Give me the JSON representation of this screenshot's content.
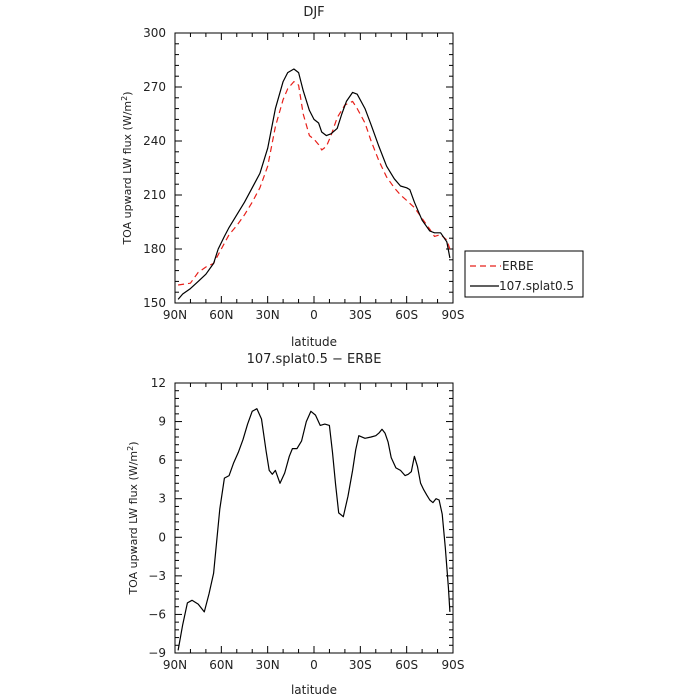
{
  "chart_data": [
    {
      "type": "line",
      "title": "DJF",
      "xlabel": "latitude",
      "ylabel": "TOA upward LW flux (W/m²)",
      "ylabel_main": "TOA upward LW flux (W/m",
      "ylabel_sup": "2",
      "ylabel_end": ")",
      "xlim": [
        90,
        -90
      ],
      "ylim": [
        150,
        300
      ],
      "x_ticks": [
        {
          "value": 90,
          "label": "90N"
        },
        {
          "value": 60,
          "label": "60N"
        },
        {
          "value": 30,
          "label": "30N"
        },
        {
          "value": 0,
          "label": "0"
        },
        {
          "value": -30,
          "label": "30S"
        },
        {
          "value": -60,
          "label": "60S"
        },
        {
          "value": -90,
          "label": "90S"
        }
      ],
      "y_ticks": [
        {
          "value": 150,
          "label": "150"
        },
        {
          "value": 180,
          "label": "180"
        },
        {
          "value": 210,
          "label": "210"
        },
        {
          "value": 240,
          "label": "240"
        },
        {
          "value": 270,
          "label": "270"
        },
        {
          "value": 300,
          "label": "300"
        }
      ],
      "legend_position": "outside-right",
      "series": [
        {
          "name": "ERBE",
          "color": "#e8201a",
          "dash": "dashed",
          "x": [
            88,
            80,
            75,
            70,
            65,
            60,
            55,
            50,
            45,
            40,
            35,
            30,
            25,
            20,
            17,
            13,
            10,
            7,
            3,
            0,
            -3,
            -5,
            -8,
            -11,
            -15,
            -20,
            -25,
            -28,
            -33,
            -37,
            -42,
            -47,
            -52,
            -56,
            -60,
            -65,
            -70,
            -75,
            -78,
            -82,
            -86,
            -88
          ],
          "y": [
            160,
            161,
            167,
            170,
            172,
            180,
            188,
            193,
            199,
            206,
            214,
            226,
            248,
            263,
            269,
            273,
            271,
            255,
            243,
            241,
            238,
            235,
            237,
            243,
            253,
            260,
            262,
            258,
            250,
            240,
            229,
            220,
            214,
            210,
            207,
            203,
            197,
            191,
            187,
            188,
            185,
            180
          ]
        },
        {
          "name": "107.splat0.5",
          "color": "#000000",
          "dash": "solid",
          "x": [
            88,
            85,
            80,
            75,
            70,
            65,
            62,
            58,
            55,
            50,
            45,
            40,
            35,
            30,
            25,
            20,
            17,
            13,
            10,
            7,
            3,
            0,
            -3,
            -5,
            -8,
            -11,
            -15,
            -18,
            -21,
            -25,
            -28,
            -33,
            -37,
            -42,
            -47,
            -52,
            -56,
            -60,
            -62,
            -65,
            -70,
            -75,
            -78,
            -82,
            -86,
            -88
          ],
          "y": [
            152,
            155,
            158,
            162,
            166,
            172,
            180,
            187,
            192,
            199,
            206,
            214,
            222,
            236,
            258,
            273,
            278,
            280,
            278,
            268,
            257,
            252,
            250,
            245,
            243,
            244,
            247,
            255,
            262,
            267,
            266,
            258,
            249,
            237,
            226,
            219,
            215,
            214,
            213,
            206,
            196,
            190,
            189,
            189,
            184,
            175
          ]
        }
      ]
    },
    {
      "type": "line",
      "title": "107.splat0.5 − ERBE",
      "xlabel": "latitude",
      "ylabel": "TOA upward LW flux (W/m²)",
      "ylabel_main": "TOA upward LW flux (W/m",
      "ylabel_sup": "2",
      "ylabel_end": ")",
      "xlim": [
        90,
        -90
      ],
      "ylim": [
        -9,
        12
      ],
      "x_ticks": [
        {
          "value": 90,
          "label": "90N"
        },
        {
          "value": 60,
          "label": "60N"
        },
        {
          "value": 30,
          "label": "30N"
        },
        {
          "value": 0,
          "label": "0"
        },
        {
          "value": -30,
          "label": "30S"
        },
        {
          "value": -60,
          "label": "60S"
        },
        {
          "value": -90,
          "label": "90S"
        }
      ],
      "y_ticks": [
        {
          "value": 12,
          "label": "12"
        },
        {
          "value": 9,
          "label": "9"
        },
        {
          "value": 6,
          "label": "6"
        },
        {
          "value": 3,
          "label": "3"
        },
        {
          "value": 0,
          "label": "0"
        },
        {
          "value": -3,
          "label": "−3"
        },
        {
          "value": -6,
          "label": "−6"
        },
        {
          "value": -9,
          "label": "−9"
        }
      ],
      "series": [
        {
          "name": "",
          "color": "#000000",
          "dash": "solid",
          "x": [
            88,
            85,
            82,
            79,
            75,
            71,
            68,
            65,
            63,
            61,
            58,
            55,
            52,
            49,
            46,
            43,
            40,
            37,
            34,
            31,
            29,
            27,
            25,
            22,
            19,
            16,
            14,
            11,
            8,
            5,
            2,
            -1,
            -4,
            -7,
            -10,
            -12,
            -14,
            -16,
            -19,
            -22,
            -25,
            -27,
            -29,
            -33,
            -37,
            -40,
            -42,
            -44,
            -46,
            -48,
            -50,
            -53,
            -56,
            -59,
            -61,
            -63,
            -65,
            -67,
            -69,
            -71,
            -73,
            -75,
            -77,
            -79,
            -81,
            -83,
            -85,
            -87,
            -88
          ],
          "y": [
            -8.8,
            -6.8,
            -5.1,
            -4.9,
            -5.2,
            -5.8,
            -4.4,
            -2.8,
            -0.3,
            2.2,
            4.6,
            4.8,
            5.8,
            6.6,
            7.6,
            8.8,
            9.8,
            10.0,
            9.2,
            6.7,
            5.2,
            4.9,
            5.2,
            4.2,
            5.0,
            6.3,
            6.9,
            6.9,
            7.5,
            9.0,
            9.8,
            9.5,
            8.7,
            8.8,
            8.7,
            6.6,
            4.1,
            1.9,
            1.6,
            3.2,
            5.2,
            6.8,
            7.9,
            7.7,
            7.8,
            7.9,
            8.1,
            8.4,
            8.1,
            7.4,
            6.2,
            5.4,
            5.2,
            4.8,
            4.9,
            5.1,
            6.3,
            5.5,
            4.2,
            3.7,
            3.3,
            2.9,
            2.7,
            3.0,
            2.9,
            1.8,
            -0.8,
            -3.9,
            -5.8
          ]
        }
      ]
    }
  ]
}
